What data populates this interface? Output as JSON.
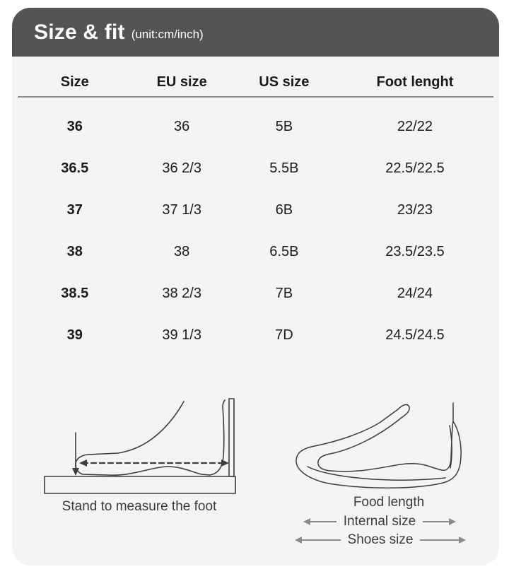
{
  "header": {
    "title": "Size & fit",
    "unit": "(unit:cm/inch)"
  },
  "table": {
    "columns": [
      "Size",
      "EU size",
      "US size",
      "Foot lenght"
    ],
    "rows": [
      [
        "36",
        "36",
        "5B",
        "22/22"
      ],
      [
        "36.5",
        "36 2/3",
        "5.5B",
        "22.5/22.5"
      ],
      [
        "37",
        "37 1/3",
        "6B",
        "23/23"
      ],
      [
        "38",
        "38",
        "6.5B",
        "23.5/23.5"
      ],
      [
        "38.5",
        "38 2/3",
        "7B",
        "24/24"
      ],
      [
        "39",
        "39 1/3",
        "7D",
        "24.5/24.5"
      ]
    ]
  },
  "figures": {
    "left_caption": "Stand to measure the foot",
    "right_labels": {
      "food_length": "Food length",
      "internal_size": "Internal size",
      "shoes_size": "Shoes size"
    }
  },
  "colors": {
    "header_bg": "#545457",
    "panel_bg": "#f4f4f4",
    "text": "#1b1b1b",
    "divider": "#8e8e8e",
    "drawing": "#3d3d3d",
    "arrow": "#8a8a8a",
    "caption": "#3b3b3b"
  }
}
